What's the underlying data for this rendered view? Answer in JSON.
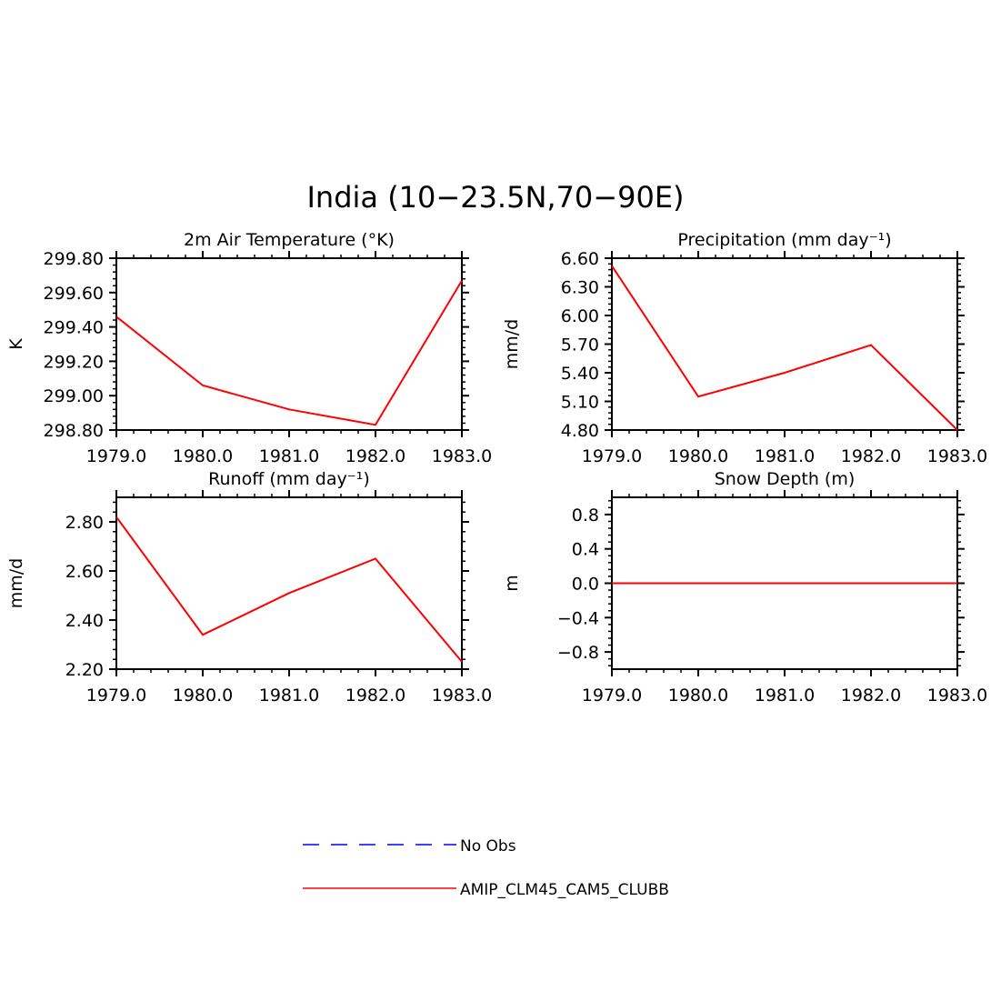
{
  "figure": {
    "title": "India (10−23.5N,70−90E)"
  },
  "legend": {
    "items": [
      {
        "label": "No Obs",
        "color": "#0000ff",
        "style": "dashed"
      },
      {
        "label": "AMIP_CLM45_CAM5_CLUBB",
        "color": "#ff0000",
        "style": "solid"
      }
    ]
  },
  "chart_data": [
    {
      "type": "line",
      "title": "2m Air Temperature (°K)",
      "ylabel": "K",
      "x": [
        1979,
        1980,
        1981,
        1982,
        1983
      ],
      "xlim": [
        1979,
        1983
      ],
      "xticks": [
        "1979.0",
        "1980.0",
        "1981.0",
        "1982.0",
        "1983.0"
      ],
      "ylim": [
        298.8,
        299.8
      ],
      "yticks": [
        "298.80",
        "299.00",
        "299.20",
        "299.40",
        "299.60",
        "299.80"
      ],
      "series": [
        {
          "name": "AMIP_CLM45_CAM5_CLUBB",
          "color": "#ff0000",
          "values": [
            299.46,
            299.06,
            298.92,
            298.83,
            299.67
          ]
        }
      ]
    },
    {
      "type": "line",
      "title": "Precipitation (mm day⁻¹)",
      "ylabel": "mm/d",
      "x": [
        1979,
        1980,
        1981,
        1982,
        1983
      ],
      "xlim": [
        1979,
        1983
      ],
      "xticks": [
        "1979.0",
        "1980.0",
        "1981.0",
        "1982.0",
        "1983.0"
      ],
      "ylim": [
        4.8,
        6.6
      ],
      "yticks": [
        "4.80",
        "5.10",
        "5.40",
        "5.70",
        "6.00",
        "6.30",
        "6.60"
      ],
      "series": [
        {
          "name": "AMIP_CLM45_CAM5_CLUBB",
          "color": "#ff0000",
          "values": [
            6.52,
            5.15,
            5.4,
            5.69,
            4.8
          ]
        }
      ]
    },
    {
      "type": "line",
      "title": "Runoff (mm day⁻¹)",
      "ylabel": "mm/d",
      "x": [
        1979,
        1980,
        1981,
        1982,
        1983
      ],
      "xlim": [
        1979,
        1983
      ],
      "xticks": [
        "1979.0",
        "1980.0",
        "1981.0",
        "1982.0",
        "1983.0"
      ],
      "ylim": [
        2.2,
        2.9
      ],
      "yticks": [
        "2.20",
        "2.40",
        "2.60",
        "2.80"
      ],
      "series": [
        {
          "name": "AMIP_CLM45_CAM5_CLUBB",
          "color": "#ff0000",
          "values": [
            2.82,
            2.34,
            2.51,
            2.65,
            2.23
          ]
        }
      ]
    },
    {
      "type": "line",
      "title": "Snow Depth (m)",
      "ylabel": "m",
      "x": [
        1979,
        1980,
        1981,
        1982,
        1983
      ],
      "xlim": [
        1979,
        1983
      ],
      "xticks": [
        "1979.0",
        "1980.0",
        "1981.0",
        "1982.0",
        "1983.0"
      ],
      "ylim": [
        -1.0,
        1.0
      ],
      "yticks": [
        "−0.8",
        "−0.4",
        "0.0",
        "0.4",
        "0.8"
      ],
      "series": [
        {
          "name": "AMIP_CLM45_CAM5_CLUBB",
          "color": "#ff0000",
          "values": [
            0,
            0,
            0,
            0,
            0
          ]
        }
      ]
    }
  ]
}
